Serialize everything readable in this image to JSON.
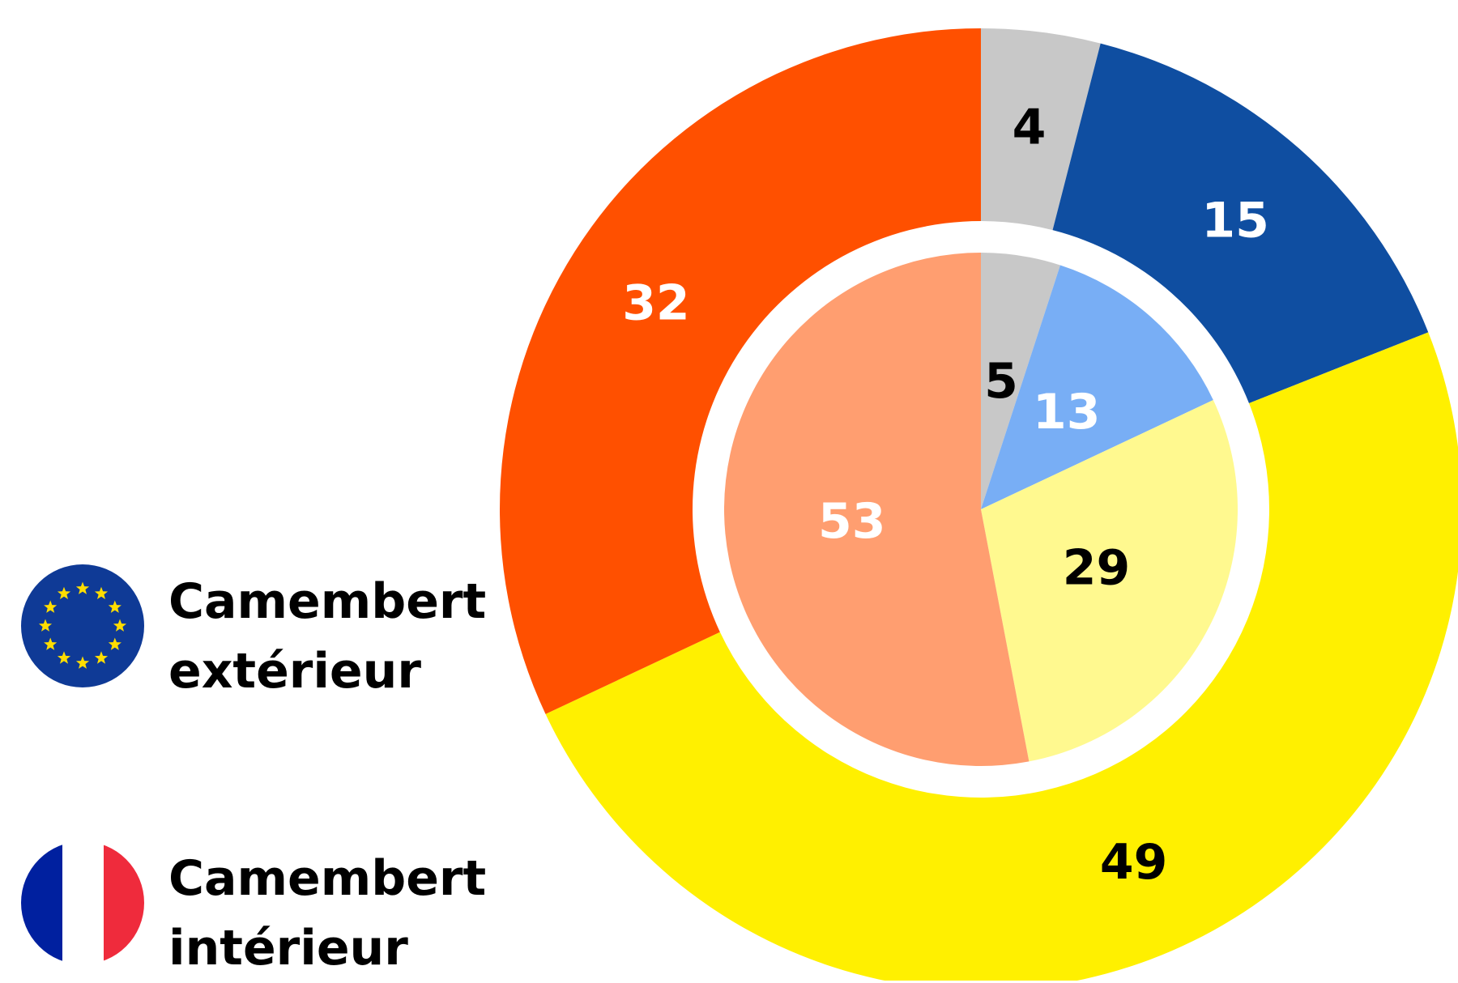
{
  "chart_data": {
    "type": "pie",
    "series": [
      {
        "name": "Camembert extérieur",
        "values": [
          4,
          15,
          49,
          32
        ],
        "colors": [
          "#c8c8c8",
          "#0f4ea1",
          "#fff000",
          "#ff5000"
        ],
        "label_colors": [
          "#000000",
          "#ffffff",
          "#000000",
          "#ffffff"
        ]
      },
      {
        "name": "Camembert intérieur",
        "values": [
          5,
          13,
          29,
          53
        ],
        "colors": [
          "#c8c8c8",
          "#78aef5",
          "#fff98f",
          "#ff9e70"
        ],
        "label_colors": [
          "#000000",
          "#ffffff",
          "#000000",
          "#ffffff"
        ]
      }
    ]
  }
}
